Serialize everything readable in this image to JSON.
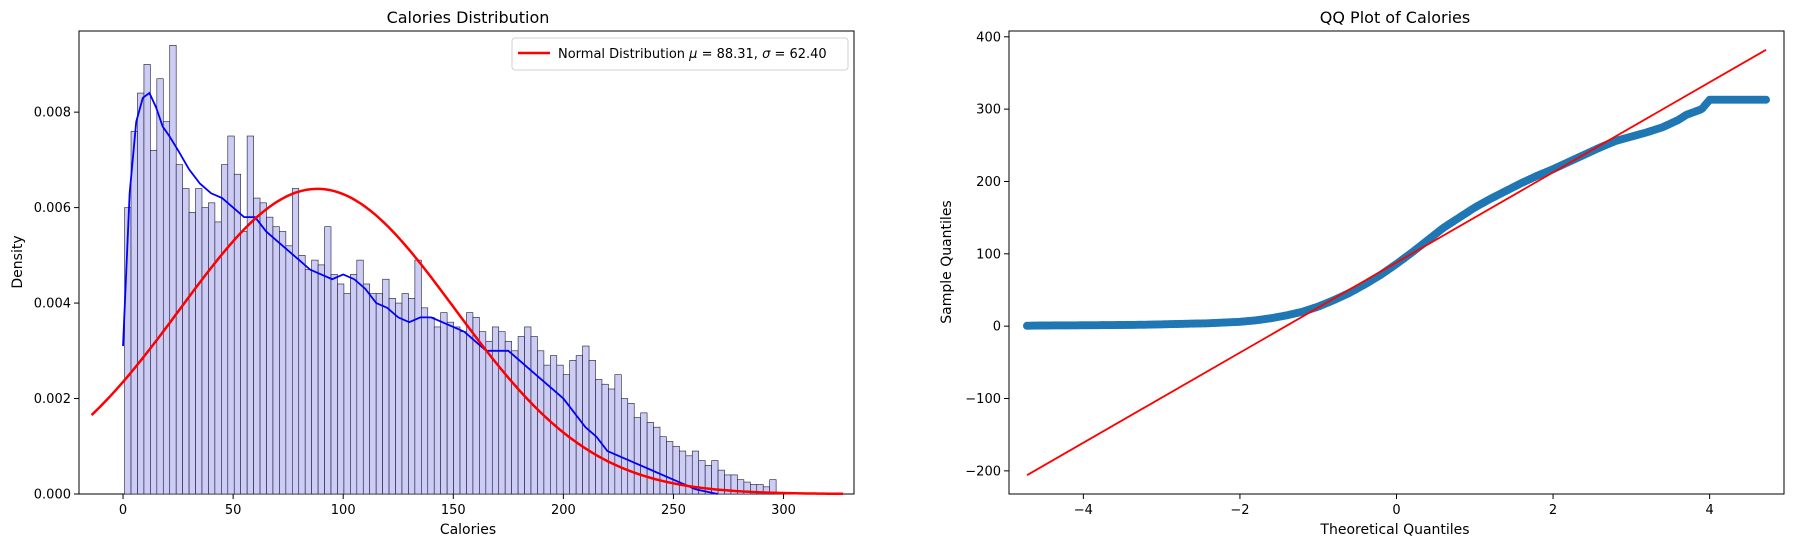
{
  "chart_data": [
    {
      "type": "histogram",
      "title": "Calories Distribution",
      "xlabel": "Calories",
      "ylabel": "Density",
      "xlim": [
        -20,
        332
      ],
      "ylim": [
        0,
        0.0097
      ],
      "xticks": [
        0,
        50,
        100,
        150,
        200,
        250,
        300
      ],
      "yticks": [
        0.0,
        0.002,
        0.004,
        0.006,
        0.008
      ],
      "ytick_labels": [
        "0.000",
        "0.002",
        "0.004",
        "0.006",
        "0.008"
      ],
      "bin_start": 0.7,
      "bin_width": 2.93,
      "bin_densities": [
        0.006,
        0.0076,
        0.0084,
        0.009,
        0.0072,
        0.0087,
        0.0078,
        0.0094,
        0.0069,
        0.0064,
        0.0059,
        0.0064,
        0.006,
        0.0061,
        0.0057,
        0.0069,
        0.0075,
        0.0067,
        0.0055,
        0.0075,
        0.0062,
        0.0061,
        0.0058,
        0.0056,
        0.0055,
        0.0052,
        0.0064,
        0.005,
        0.0047,
        0.0049,
        0.0048,
        0.0056,
        0.0046,
        0.0044,
        0.0042,
        0.0046,
        0.0049,
        0.0044,
        0.0042,
        0.0042,
        0.0045,
        0.0041,
        0.004,
        0.0042,
        0.0041,
        0.0049,
        0.0039,
        0.0037,
        0.0035,
        0.0038,
        0.0036,
        0.0035,
        0.0034,
        0.0038,
        0.0037,
        0.0034,
        0.0032,
        0.0035,
        0.0034,
        0.0032,
        0.003,
        0.0033,
        0.0035,
        0.0033,
        0.003,
        0.0027,
        0.0029,
        0.0027,
        0.0025,
        0.0028,
        0.0029,
        0.0031,
        0.0028,
        0.0024,
        0.0023,
        0.0022,
        0.0025,
        0.002,
        0.0019,
        0.0016,
        0.0017,
        0.0015,
        0.0014,
        0.0012,
        0.0011,
        0.001,
        0.0009,
        0.0008,
        0.0009,
        0.0007,
        0.0006,
        0.0007,
        0.0005,
        0.0004,
        0.0004,
        0.0003,
        0.00025,
        0.0002,
        0.0002,
        0.00015,
        0.0003
      ],
      "kde": {
        "x": [
          0,
          3,
          6,
          9,
          12,
          15,
          18,
          21,
          25,
          30,
          35,
          40,
          45,
          50,
          55,
          60,
          65,
          70,
          75,
          80,
          85,
          90,
          95,
          100,
          105,
          110,
          115,
          120,
          125,
          130,
          135,
          140,
          145,
          150,
          155,
          160,
          165,
          170,
          175,
          180,
          185,
          190,
          195,
          200,
          205,
          210,
          215,
          220,
          225,
          230,
          235,
          240,
          245,
          250,
          255,
          260,
          265,
          270
        ],
        "y": [
          0.0031,
          0.0063,
          0.0078,
          0.0083,
          0.0084,
          0.0081,
          0.0077,
          0.0075,
          0.0072,
          0.0068,
          0.0065,
          0.0063,
          0.0062,
          0.006,
          0.0058,
          0.0058,
          0.0055,
          0.0053,
          0.0051,
          0.0049,
          0.0047,
          0.0046,
          0.0045,
          0.0046,
          0.0045,
          0.0043,
          0.004,
          0.0039,
          0.0037,
          0.0036,
          0.0037,
          0.0037,
          0.0036,
          0.0035,
          0.0034,
          0.0032,
          0.003,
          0.003,
          0.003,
          0.0028,
          0.0026,
          0.0024,
          0.0022,
          0.002,
          0.0017,
          0.0014,
          0.0012,
          0.0009,
          0.0008,
          0.0007,
          0.0006,
          0.0005,
          0.0004,
          0.0003,
          0.0002,
          0.0001,
          5e-05,
          0.0
        ]
      },
      "normal": {
        "mu": 88.31,
        "sigma": 62.4,
        "x_range": [
          -14.3,
          327
        ]
      },
      "legend": {
        "label": "Normal Distribution $\\mu=88.31,\\ \\sigma=62.40$",
        "placement": "upper right"
      },
      "legend_text": {
        "prefix": "Normal Distribution ",
        "mu_symbol": "μ",
        "mu_value": " = 88.31,  ",
        "sigma_symbol": "σ",
        "sigma_value": " = 62.40"
      },
      "colors": {
        "bars": "#ccccf5",
        "bar_edge": "#1a1a33",
        "kde": "#0000ff",
        "normal": "#ff0000"
      }
    },
    {
      "type": "scatter",
      "title": "QQ Plot of Calories",
      "xlabel": "Theoretical Quantiles",
      "ylabel": "Sample Quantiles",
      "xlim": [
        -4.95,
        4.95
      ],
      "ylim": [
        -232,
        408
      ],
      "xticks": [
        -4,
        -2,
        0,
        2,
        4
      ],
      "xtick_labels": [
        "−4",
        "−2",
        "0",
        "2",
        "4"
      ],
      "yticks": [
        -200,
        -100,
        0,
        100,
        200,
        300,
        400
      ],
      "ytick_labels": [
        "−200",
        "−100",
        "0",
        "100",
        "200",
        "300",
        "400"
      ],
      "qq_points": {
        "theoretical": [
          -4.72,
          -4.6,
          -4.4,
          -4.0,
          -3.6,
          -3.2,
          -2.8,
          -2.4,
          -2.0,
          -1.8,
          -1.6,
          -1.4,
          -1.2,
          -1.0,
          -0.8,
          -0.6,
          -0.4,
          -0.2,
          0,
          0.2,
          0.4,
          0.6,
          0.8,
          1.0,
          1.2,
          1.4,
          1.6,
          1.8,
          2.0,
          2.2,
          2.4,
          2.6,
          2.8,
          3.0,
          3.2,
          3.4,
          3.6,
          3.7,
          3.8,
          3.9,
          4.0,
          4.2,
          4.4,
          4.6,
          4.72
        ],
        "sample": [
          0.5,
          0.8,
          1,
          1.2,
          1.5,
          2,
          3,
          4,
          6,
          8,
          11,
          15,
          20,
          27,
          36,
          46,
          58,
          71,
          86,
          102,
          119,
          136,
          150,
          164,
          176,
          187,
          198,
          208,
          217,
          227,
          237,
          247,
          256,
          262,
          268,
          275,
          285,
          292,
          296,
          300,
          313,
          313,
          313,
          313,
          313
        ]
      },
      "reference_line": {
        "x": [
          -4.72,
          4.72
        ],
        "y": [
          -206,
          382
        ]
      },
      "colors": {
        "points": "#1f77b4",
        "line": "#ff0000"
      }
    }
  ]
}
